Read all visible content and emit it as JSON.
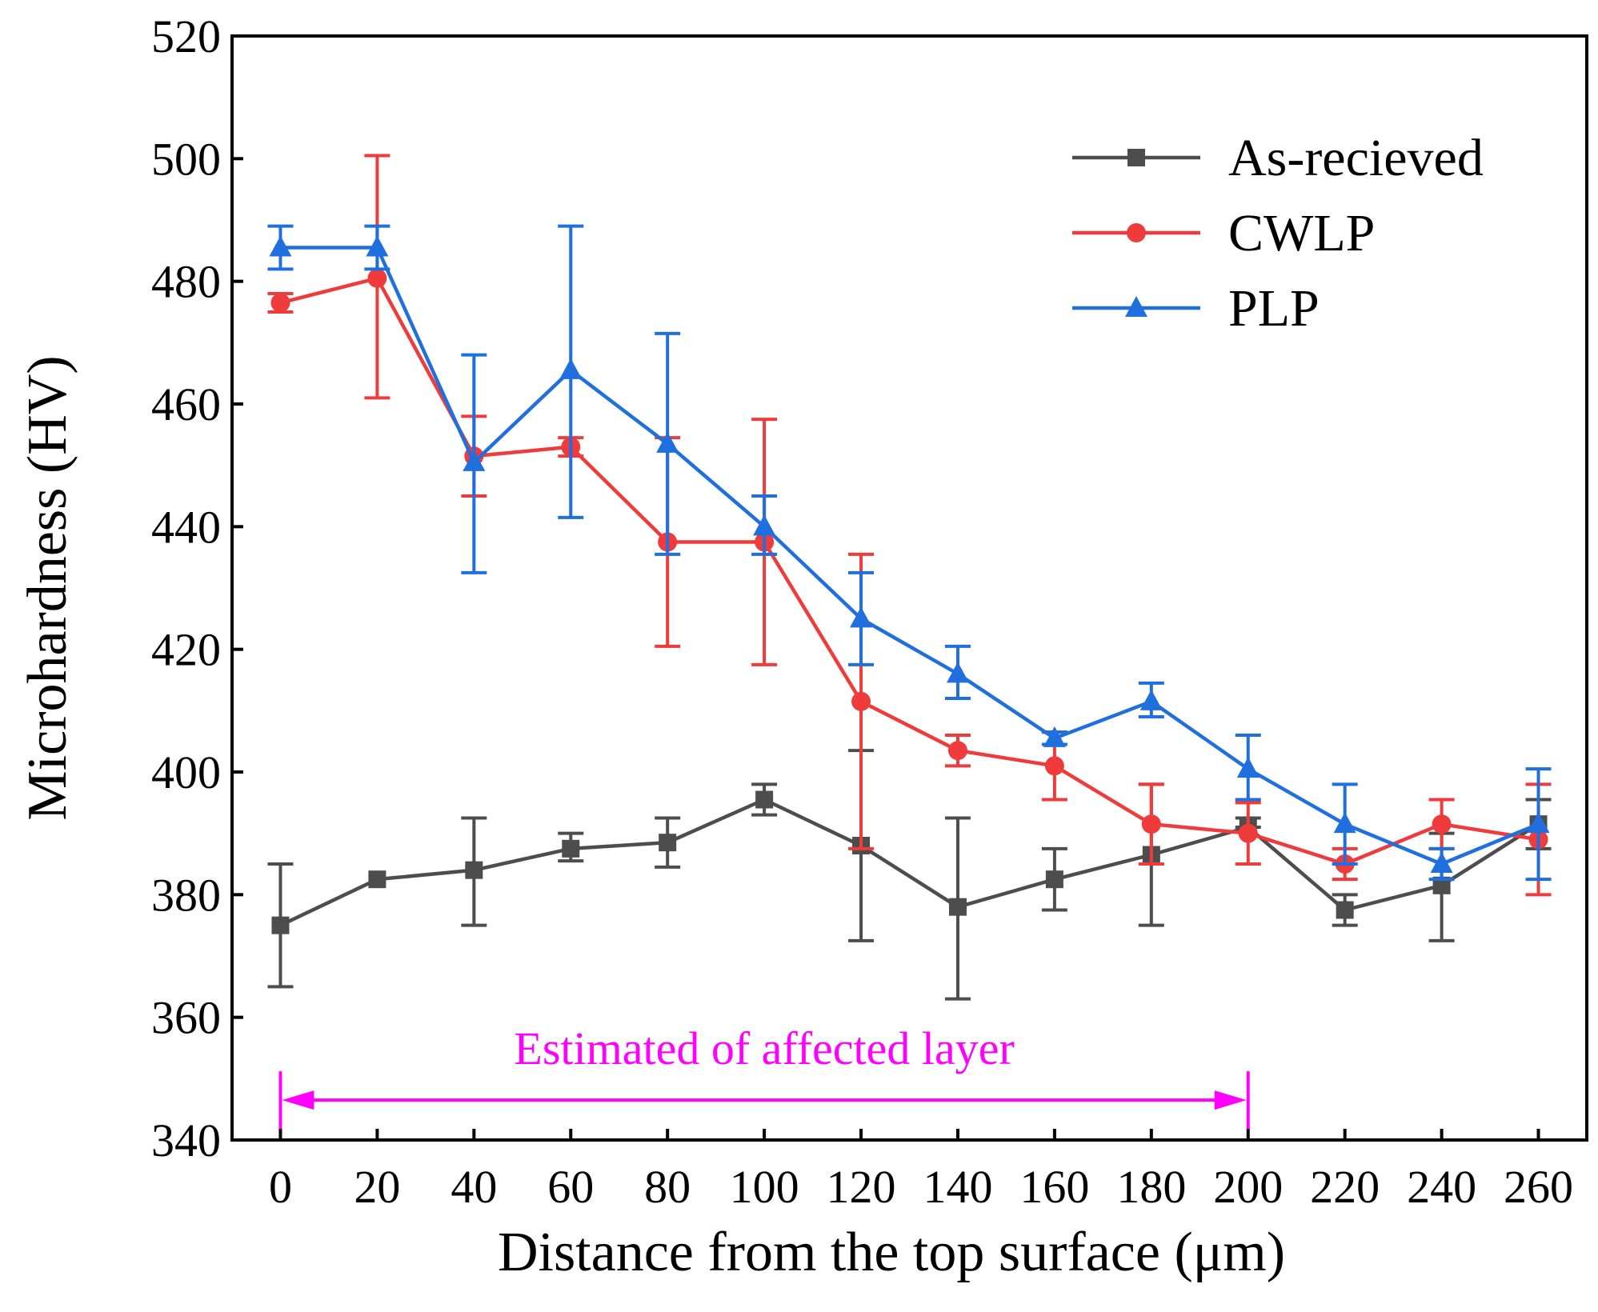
{
  "chart_data": {
    "type": "line",
    "title": "",
    "xlabel": "Distance from the top surface (μm)",
    "ylabel": "Microhardness (HV)",
    "xlim": [
      -10,
      270
    ],
    "ylim": [
      340,
      520
    ],
    "xticks": [
      0,
      20,
      40,
      60,
      80,
      100,
      120,
      140,
      160,
      180,
      200,
      220,
      240,
      260
    ],
    "xtick_labels": [
      "0",
      "20",
      "40",
      "60",
      "80",
      "100",
      "120",
      "140",
      "160",
      "180",
      "200",
      "220",
      "240",
      "260"
    ],
    "yticks": [
      340,
      360,
      380,
      400,
      420,
      440,
      460,
      480,
      500,
      520
    ],
    "ytick_labels": [
      "340",
      "360",
      "380",
      "400",
      "420",
      "440",
      "460",
      "480",
      "500",
      "520"
    ],
    "legend_position": "top-right",
    "x": [
      0,
      20,
      40,
      60,
      80,
      100,
      120,
      140,
      160,
      180,
      200,
      220,
      240,
      260
    ],
    "series": [
      {
        "name": "As-recieved",
        "color": "#4d4d4d",
        "marker": "square",
        "values": [
          375,
          382.5,
          384,
          387.5,
          388.5,
          395.5,
          388,
          378,
          382.5,
          386.5,
          391,
          377.5,
          381.5,
          391.5
        ],
        "err_low": [
          365,
          382.5,
          375,
          385.5,
          384.5,
          393,
          372.5,
          363,
          377.5,
          375,
          391,
          375,
          372.5,
          387.5
        ],
        "err_high": [
          385,
          382.5,
          392.5,
          390,
          392.5,
          398,
          403.5,
          392.5,
          387.5,
          398,
          392.5,
          380,
          390,
          395.5
        ]
      },
      {
        "name": "CWLP",
        "color": "#ef3b3b",
        "marker": "circle",
        "values": [
          476.5,
          480.5,
          451.5,
          453,
          437.5,
          437.5,
          411.5,
          403.5,
          401,
          391.5,
          390,
          385,
          391.5,
          389
        ],
        "err_low": [
          475,
          461,
          445,
          451.5,
          420.5,
          417.5,
          387.5,
          401,
          395.5,
          385,
          385,
          382.5,
          387.5,
          380
        ],
        "err_high": [
          478,
          500.5,
          458,
          454.5,
          454.5,
          457.5,
          435.5,
          406,
          406.5,
          398,
          395,
          387.5,
          395.5,
          398
        ]
      },
      {
        "name": "PLP",
        "color": "#1f6fde",
        "marker": "triangle",
        "values": [
          485.5,
          485.5,
          450.5,
          465.5,
          453.5,
          440,
          425,
          416,
          405.5,
          411.5,
          400.5,
          391.5,
          385,
          391.5
        ],
        "err_low": [
          482,
          482,
          432.5,
          441.5,
          435.5,
          435.5,
          417.5,
          412,
          404.5,
          409,
          395.5,
          385,
          382.5,
          382.5
        ],
        "err_high": [
          489,
          489,
          468,
          489,
          471.5,
          445,
          432.5,
          420.5,
          406.5,
          414.5,
          406,
          398,
          387.5,
          400.5
        ]
      }
    ],
    "annotations": [
      {
        "text": "Estimated of affected layer",
        "color": "#ff00ff",
        "arrow_from_x": 0,
        "arrow_to_x": 200,
        "arrow_y": 346.5,
        "text_x": 100,
        "text_y": 355,
        "style": "double-headed"
      }
    ]
  }
}
